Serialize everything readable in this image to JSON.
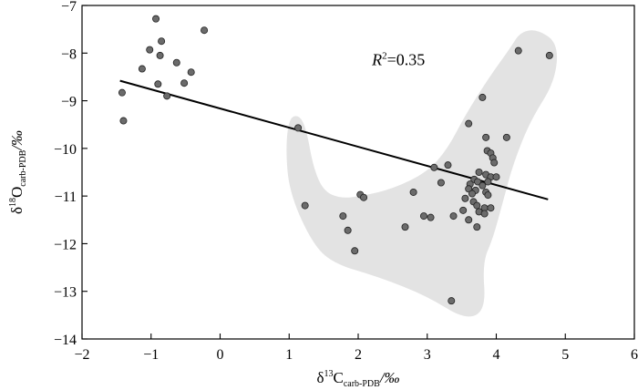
{
  "chart_data": {
    "type": "scatter",
    "xlabel": {
      "prefix": "δ",
      "sup": "13",
      "main": "C",
      "sub": "carb-PDB",
      "suffix": "/‰"
    },
    "ylabel": {
      "prefix": "δ",
      "sup": "18",
      "main": "O",
      "sub": "carb-PDB",
      "suffix": "/‰"
    },
    "xlim": [
      -2,
      6
    ],
    "ylim": [
      -14,
      -7
    ],
    "xticks": [
      -2,
      -1,
      0,
      1,
      2,
      3,
      4,
      5,
      6
    ],
    "yticks": [
      -7,
      -8,
      -9,
      -10,
      -11,
      -12,
      -13,
      -14
    ],
    "xtick_labels": [
      "−2",
      "−1",
      "0",
      "1",
      "2",
      "3",
      "4",
      "5",
      "6"
    ],
    "ytick_labels": [
      "−7",
      "−8",
      "−9",
      "−10",
      "−11",
      "−12",
      "−13",
      "−14"
    ],
    "annotation": {
      "italic": "R",
      "sup": "2",
      "rest": "=0.35"
    },
    "regression": {
      "x": [
        -1.45,
        4.75
      ],
      "y": [
        -8.58,
        -11.07
      ]
    },
    "colors": {
      "points": "#6b6b6b",
      "point_edge": "#222222",
      "region": "#e3e3e3",
      "line": "#000000"
    },
    "region_polygon": [
      [
        1.0,
        -9.35
      ],
      [
        1.15,
        -9.3
      ],
      [
        1.25,
        -9.6
      ],
      [
        1.35,
        -10.4
      ],
      [
        1.5,
        -10.9
      ],
      [
        1.75,
        -11.05
      ],
      [
        2.05,
        -11.0
      ],
      [
        2.5,
        -10.85
      ],
      [
        3.0,
        -10.5
      ],
      [
        3.3,
        -10.0
      ],
      [
        3.55,
        -9.3
      ],
      [
        3.9,
        -8.5
      ],
      [
        4.2,
        -7.9
      ],
      [
        4.35,
        -7.55
      ],
      [
        4.6,
        -7.5
      ],
      [
        4.9,
        -7.8
      ],
      [
        4.85,
        -8.6
      ],
      [
        4.5,
        -9.4
      ],
      [
        4.25,
        -10.3
      ],
      [
        4.1,
        -11.1
      ],
      [
        3.95,
        -11.9
      ],
      [
        3.8,
        -12.4
      ],
      [
        3.85,
        -13.4
      ],
      [
        3.55,
        -13.6
      ],
      [
        3.0,
        -13.1
      ],
      [
        2.3,
        -12.7
      ],
      [
        1.6,
        -12.4
      ],
      [
        1.3,
        -11.9
      ],
      [
        1.0,
        -10.9
      ],
      [
        0.95,
        -10.0
      ]
    ],
    "points": [
      {
        "x": -0.93,
        "y": -7.28
      },
      {
        "x": -0.23,
        "y": -7.52
      },
      {
        "x": -0.85,
        "y": -7.75
      },
      {
        "x": -1.02,
        "y": -7.93
      },
      {
        "x": -0.87,
        "y": -8.05
      },
      {
        "x": -0.63,
        "y": -8.2
      },
      {
        "x": -1.13,
        "y": -8.33
      },
      {
        "x": -0.42,
        "y": -8.4
      },
      {
        "x": -0.9,
        "y": -8.65
      },
      {
        "x": -0.52,
        "y": -8.63
      },
      {
        "x": -1.42,
        "y": -8.83
      },
      {
        "x": -0.77,
        "y": -8.9
      },
      {
        "x": -1.4,
        "y": -9.42
      },
      {
        "x": 4.32,
        "y": -7.95
      },
      {
        "x": 4.77,
        "y": -8.05
      },
      {
        "x": 3.8,
        "y": -8.93
      },
      {
        "x": 3.6,
        "y": -9.48
      },
      {
        "x": 1.13,
        "y": -9.57
      },
      {
        "x": 3.85,
        "y": -9.77
      },
      {
        "x": 4.15,
        "y": -9.77
      },
      {
        "x": 3.87,
        "y": -10.05
      },
      {
        "x": 3.92,
        "y": -10.1
      },
      {
        "x": 3.95,
        "y": -10.2
      },
      {
        "x": 3.97,
        "y": -10.3
      },
      {
        "x": 3.3,
        "y": -10.35
      },
      {
        "x": 3.1,
        "y": -10.4
      },
      {
        "x": 3.75,
        "y": -10.5
      },
      {
        "x": 3.85,
        "y": -10.55
      },
      {
        "x": 3.92,
        "y": -10.6
      },
      {
        "x": 4.0,
        "y": -10.6
      },
      {
        "x": 3.68,
        "y": -10.65
      },
      {
        "x": 3.73,
        "y": -10.7
      },
      {
        "x": 3.88,
        "y": -10.7
      },
      {
        "x": 3.2,
        "y": -10.72
      },
      {
        "x": 3.62,
        "y": -10.75
      },
      {
        "x": 3.8,
        "y": -10.78
      },
      {
        "x": 3.6,
        "y": -10.85
      },
      {
        "x": 3.7,
        "y": -10.88
      },
      {
        "x": 3.85,
        "y": -10.92
      },
      {
        "x": 2.8,
        "y": -10.92
      },
      {
        "x": 3.65,
        "y": -10.95
      },
      {
        "x": 2.03,
        "y": -10.97
      },
      {
        "x": 2.08,
        "y": -11.03
      },
      {
        "x": 3.88,
        "y": -10.98
      },
      {
        "x": 3.55,
        "y": -11.05
      },
      {
        "x": 3.67,
        "y": -11.12
      },
      {
        "x": 3.72,
        "y": -11.2
      },
      {
        "x": 1.23,
        "y": -11.2
      },
      {
        "x": 3.83,
        "y": -11.25
      },
      {
        "x": 3.92,
        "y": -11.25
      },
      {
        "x": 3.52,
        "y": -11.3
      },
      {
        "x": 3.75,
        "y": -11.33
      },
      {
        "x": 3.83,
        "y": -11.37
      },
      {
        "x": 1.78,
        "y": -11.42
      },
      {
        "x": 2.95,
        "y": -11.42
      },
      {
        "x": 3.38,
        "y": -11.42
      },
      {
        "x": 3.05,
        "y": -11.45
      },
      {
        "x": 3.6,
        "y": -11.5
      },
      {
        "x": 2.68,
        "y": -11.65
      },
      {
        "x": 3.72,
        "y": -11.65
      },
      {
        "x": 1.85,
        "y": -11.72
      },
      {
        "x": 1.95,
        "y": -12.15
      },
      {
        "x": 3.35,
        "y": -13.2
      }
    ]
  }
}
